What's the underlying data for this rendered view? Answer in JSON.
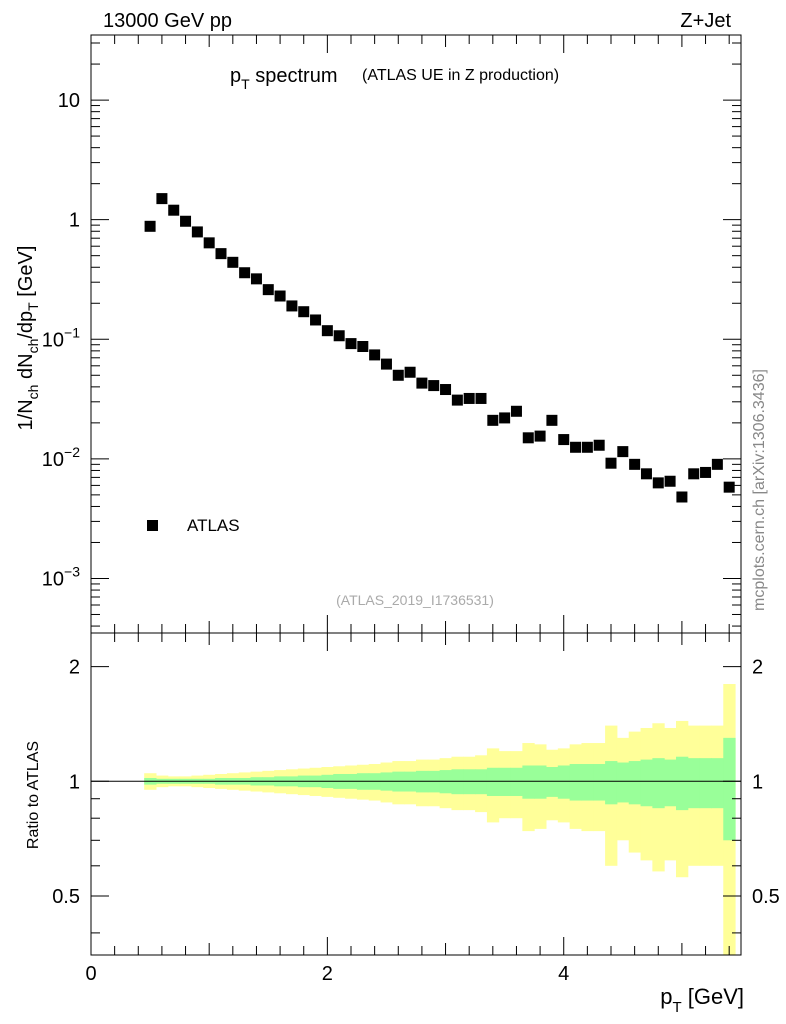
{
  "header": {
    "left": "13000 GeV pp",
    "right": "Z+Jet"
  },
  "side_label": "mcplots.cern.ch [arXiv:1306.3436]",
  "analysis_label": "(ATLAS_2019_I1736531)",
  "colors": {
    "marker": "#000000",
    "band_inner": "#99ff99",
    "band_outer": "#ffff99",
    "reference_line": "#000000",
    "analysis_label": "#aaaaaa"
  },
  "chart_data": [
    {
      "type": "scatter",
      "name": "main",
      "title": "p_T spectrum",
      "title_main": "p",
      "title_sub": "T",
      "title_rest": " spectrum",
      "subtitle": "(ATLAS UE in Z production)",
      "ylabel": "1/N_ch dN_ch/dp_T [GeV]",
      "yscale": "log",
      "xlim": [
        0,
        5.5
      ],
      "ylim": [
        0.00035,
        35
      ],
      "y_ticks": [
        {
          "value": 10,
          "label": "10"
        },
        {
          "value": 1,
          "label": "1"
        },
        {
          "value": 0.1,
          "label": "10",
          "exp": "−1"
        },
        {
          "value": 0.01,
          "label": "10",
          "exp": "−2"
        },
        {
          "value": 0.001,
          "label": "10",
          "exp": "−3"
        }
      ],
      "legend": {
        "position": "lower-left",
        "label": "ATLAS"
      },
      "series": [
        {
          "name": "ATLAS",
          "x": [
            0.5,
            0.6,
            0.7,
            0.8,
            0.9,
            1.0,
            1.1,
            1.2,
            1.3,
            1.4,
            1.5,
            1.6,
            1.7,
            1.8,
            1.9,
            2.0,
            2.1,
            2.2,
            2.3,
            2.4,
            2.5,
            2.6,
            2.7,
            2.8,
            2.9,
            3.0,
            3.1,
            3.2,
            3.3,
            3.4,
            3.5,
            3.6,
            3.7,
            3.8,
            3.9,
            4.0,
            4.1,
            4.2,
            4.3,
            4.4,
            4.5,
            4.6,
            4.7,
            4.8,
            4.9,
            5.0,
            5.1,
            5.2,
            5.3,
            5.4
          ],
          "y": [
            0.88,
            1.5,
            1.2,
            0.97,
            0.79,
            0.64,
            0.52,
            0.44,
            0.36,
            0.32,
            0.26,
            0.23,
            0.19,
            0.17,
            0.145,
            0.118,
            0.107,
            0.092,
            0.087,
            0.074,
            0.062,
            0.05,
            0.053,
            0.043,
            0.041,
            0.038,
            0.031,
            0.032,
            0.032,
            0.021,
            0.022,
            0.025,
            0.015,
            0.0155,
            0.021,
            0.0145,
            0.0125,
            0.0125,
            0.013,
            0.0092,
            0.0115,
            0.009,
            0.0075,
            0.0063,
            0.0065,
            0.0048,
            0.0075,
            0.0077,
            0.009,
            0.0058
          ]
        }
      ]
    },
    {
      "type": "area",
      "name": "ratio",
      "xlabel": "p_T [GeV]",
      "xlabel_main": "p",
      "xlabel_sub": "T",
      "xlabel_rest": " [GeV]",
      "ylabel": "Ratio to ATLAS",
      "yscale": "log",
      "xlim": [
        0,
        5.5
      ],
      "ylim": [
        0.35,
        2.45
      ],
      "x_ticks": [
        {
          "value": 0,
          "label": "0"
        },
        {
          "value": 2,
          "label": "2"
        },
        {
          "value": 4,
          "label": "4"
        }
      ],
      "y_ticks": [
        {
          "value": 2,
          "label": "2"
        },
        {
          "value": 1,
          "label": "1"
        },
        {
          "value": 0.5,
          "label": "0.5"
        }
      ],
      "reference": 1.0,
      "bins": {
        "x_low": [
          0.45,
          0.55,
          0.65,
          0.75,
          0.85,
          0.95,
          1.05,
          1.15,
          1.25,
          1.35,
          1.45,
          1.55,
          1.65,
          1.75,
          1.85,
          1.95,
          2.05,
          2.15,
          2.25,
          2.35,
          2.45,
          2.55,
          2.65,
          2.75,
          2.85,
          2.95,
          3.05,
          3.15,
          3.25,
          3.35,
          3.45,
          3.55,
          3.65,
          3.75,
          3.85,
          3.95,
          4.05,
          4.15,
          4.25,
          4.35,
          4.45,
          4.55,
          4.65,
          4.75,
          4.85,
          4.95,
          5.05,
          5.15,
          5.25,
          5.35
        ],
        "x_high": [
          0.55,
          0.65,
          0.75,
          0.85,
          0.95,
          1.05,
          1.15,
          1.25,
          1.35,
          1.45,
          1.55,
          1.65,
          1.75,
          1.85,
          1.95,
          2.05,
          2.15,
          2.25,
          2.35,
          2.45,
          2.55,
          2.65,
          2.75,
          2.85,
          2.95,
          3.05,
          3.15,
          3.25,
          3.35,
          3.45,
          3.55,
          3.65,
          3.75,
          3.85,
          3.95,
          4.05,
          4.15,
          4.25,
          4.35,
          4.45,
          4.55,
          4.65,
          4.75,
          4.85,
          4.95,
          5.05,
          5.15,
          5.25,
          5.35,
          5.45
        ],
        "stat_err": [
          0.02,
          0.015,
          0.015,
          0.015,
          0.015,
          0.015,
          0.02,
          0.02,
          0.02,
          0.025,
          0.025,
          0.03,
          0.03,
          0.035,
          0.035,
          0.04,
          0.045,
          0.045,
          0.05,
          0.05,
          0.055,
          0.06,
          0.06,
          0.065,
          0.065,
          0.07,
          0.075,
          0.075,
          0.075,
          0.085,
          0.085,
          0.085,
          0.1,
          0.1,
          0.09,
          0.1,
          0.11,
          0.11,
          0.11,
          0.13,
          0.12,
          0.13,
          0.14,
          0.15,
          0.14,
          0.16,
          0.15,
          0.15,
          0.15,
          0.3
        ],
        "total_err": [
          0.05,
          0.035,
          0.03,
          0.03,
          0.035,
          0.04,
          0.045,
          0.05,
          0.055,
          0.06,
          0.065,
          0.07,
          0.075,
          0.08,
          0.085,
          0.09,
          0.095,
          0.1,
          0.105,
          0.11,
          0.12,
          0.13,
          0.13,
          0.14,
          0.14,
          0.15,
          0.16,
          0.16,
          0.17,
          0.22,
          0.2,
          0.2,
          0.26,
          0.25,
          0.21,
          0.22,
          0.25,
          0.26,
          0.26,
          0.4,
          0.3,
          0.35,
          0.38,
          0.42,
          0.38,
          0.44,
          0.4,
          0.4,
          0.4,
          0.8
        ]
      }
    }
  ]
}
